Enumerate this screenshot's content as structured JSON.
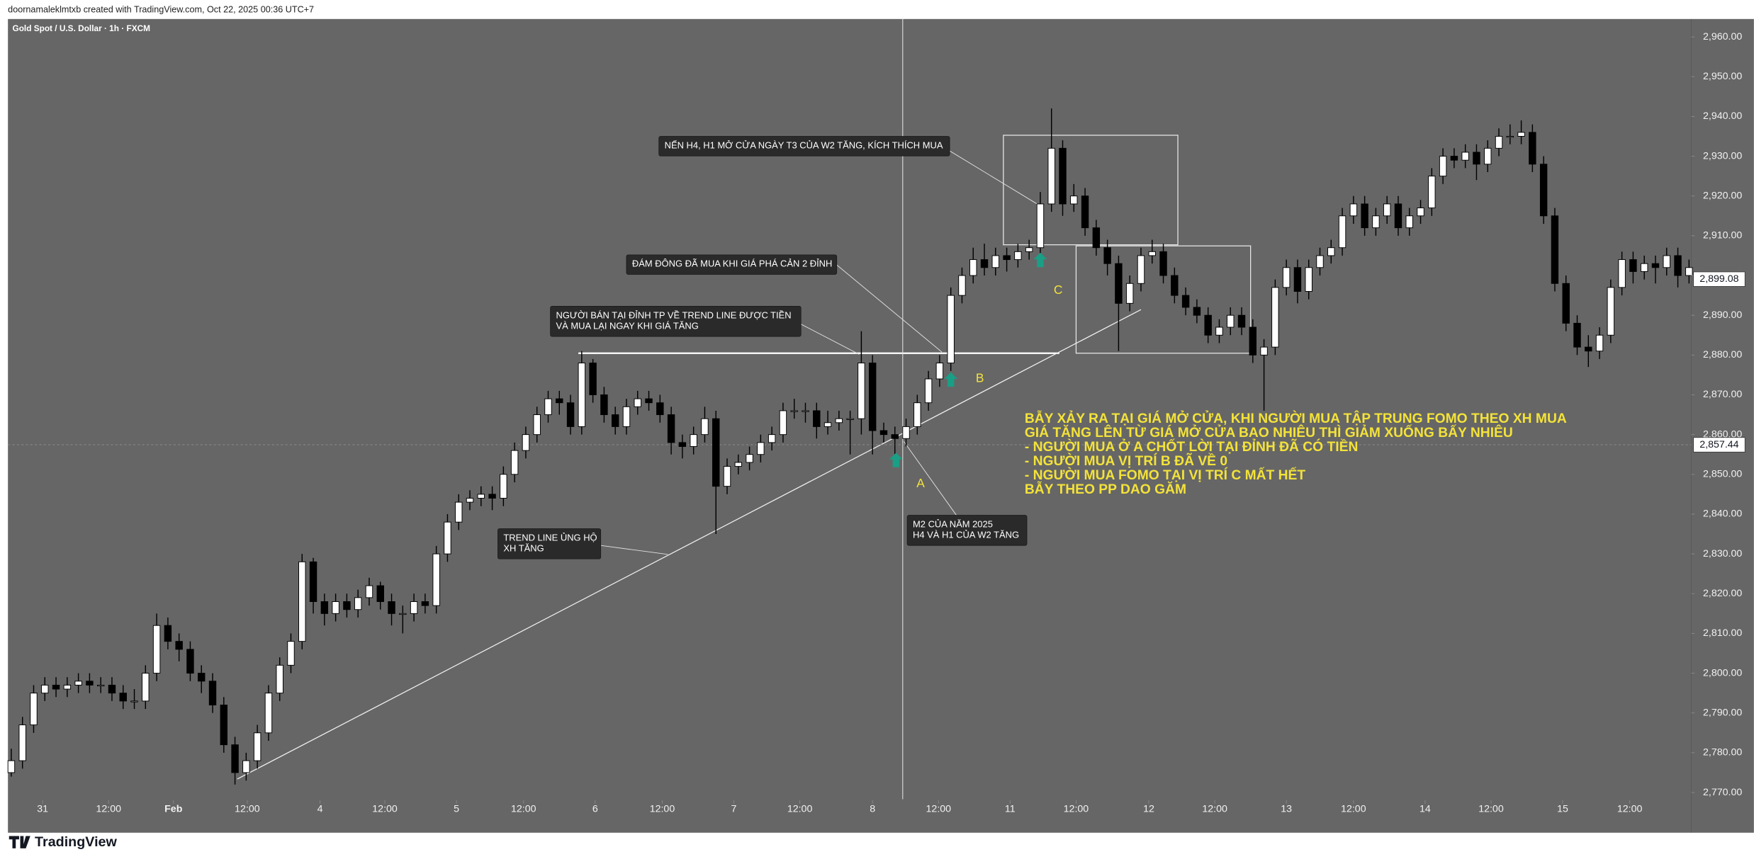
{
  "header": {
    "attribution": "doornamaleklmtxb created with TradingView.com, Oct 22, 2025 00:36 UTC+7"
  },
  "footer": {
    "brand": "TradingView"
  },
  "chart_data": {
    "type": "candlestick",
    "title": "Gold Spot / U.S. Dollar · 1h · FXCM",
    "colors": {
      "up": "#ffffff",
      "down": "#000000",
      "wick": "#000000"
    },
    "ylim": [
      2762.7,
      2964.5
    ],
    "yticks": [
      {
        "value": 2960,
        "label": "2,960.00"
      },
      {
        "value": 2950,
        "label": "2,950.00"
      },
      {
        "value": 2940,
        "label": "2,940.00"
      },
      {
        "value": 2930,
        "label": "2,930.00"
      },
      {
        "value": 2920,
        "label": "2,920.00"
      },
      {
        "value": 2910,
        "label": "2,910.00"
      },
      {
        "value": 2900,
        "label": "2,900.00"
      },
      {
        "value": 2890,
        "label": "2,890.00"
      },
      {
        "value": 2880,
        "label": "2,880.00"
      },
      {
        "value": 2870,
        "label": "2,870.00"
      },
      {
        "value": 2860,
        "label": "2,860.00"
      },
      {
        "value": 2850,
        "label": "2,850.00"
      },
      {
        "value": 2840,
        "label": "2,840.00"
      },
      {
        "value": 2830,
        "label": "2,830.00"
      },
      {
        "value": 2820,
        "label": "2,820.00"
      },
      {
        "value": 2810,
        "label": "2,810.00"
      },
      {
        "value": 2800,
        "label": "2,800.00"
      },
      {
        "value": 2790,
        "label": "2,790.00"
      },
      {
        "value": 2780,
        "label": "2,780.00"
      },
      {
        "value": 2770,
        "label": "2,770.00"
      }
    ],
    "xlim": [
      -0.3,
      150.2
    ],
    "xticks": [
      {
        "value": 2.8,
        "label": "31"
      },
      {
        "value": 8.7,
        "label": "12:00"
      },
      {
        "value": 14.5,
        "label": "Feb"
      },
      {
        "value": 21.1,
        "label": "12:00"
      },
      {
        "value": 27.6,
        "label": "4"
      },
      {
        "value": 33.4,
        "label": "12:00"
      },
      {
        "value": 39.8,
        "label": "5"
      },
      {
        "value": 45.8,
        "label": "12:00"
      },
      {
        "value": 52.2,
        "label": "6"
      },
      {
        "value": 58.2,
        "label": "12:00"
      },
      {
        "value": 64.6,
        "label": "7"
      },
      {
        "value": 70.5,
        "label": "12:00"
      },
      {
        "value": 77,
        "label": "8"
      },
      {
        "value": 82.9,
        "label": "12:00"
      },
      {
        "value": 89.3,
        "label": "11"
      },
      {
        "value": 95.2,
        "label": "12:00"
      },
      {
        "value": 101.7,
        "label": "12"
      },
      {
        "value": 107.6,
        "label": "12:00"
      },
      {
        "value": 114,
        "label": "13"
      },
      {
        "value": 120,
        "label": "12:00"
      },
      {
        "value": 126.4,
        "label": "14"
      },
      {
        "value": 132.3,
        "label": "12:00"
      },
      {
        "value": 138.7,
        "label": "15"
      },
      {
        "value": 144.7,
        "label": "12:00"
      }
    ],
    "last_price": {
      "value": 2899.08,
      "label": "2,899.08"
    },
    "crosshair_price": {
      "value": 2857.44,
      "label": "2,857.44"
    },
    "candles": [
      [
        2775,
        2781,
        2774,
        2778
      ],
      [
        2778,
        2789,
        2776,
        2787
      ],
      [
        2787,
        2797,
        2785,
        2795
      ],
      [
        2795,
        2799,
        2793,
        2797
      ],
      [
        2797,
        2799,
        2794,
        2796
      ],
      [
        2796,
        2799,
        2794,
        2797
      ],
      [
        2797,
        2800,
        2795,
        2798
      ],
      [
        2798,
        2800,
        2795,
        2797
      ],
      [
        2797,
        2799,
        2795,
        2797
      ],
      [
        2797,
        2799,
        2793,
        2795
      ],
      [
        2795,
        2797,
        2791,
        2793
      ],
      [
        2793,
        2796,
        2791,
        2793
      ],
      [
        2793,
        2802,
        2791,
        2800
      ],
      [
        2800,
        2815,
        2798,
        2812
      ],
      [
        2812,
        2814,
        2806,
        2808
      ],
      [
        2808,
        2810,
        2803,
        2806
      ],
      [
        2806,
        2808,
        2798,
        2800
      ],
      [
        2800,
        2802,
        2795,
        2798
      ],
      [
        2798,
        2800,
        2790,
        2792
      ],
      [
        2792,
        2794,
        2780,
        2782
      ],
      [
        2782,
        2784,
        2772,
        2775
      ],
      [
        2775,
        2780,
        2773,
        2778
      ],
      [
        2778,
        2787,
        2776,
        2785
      ],
      [
        2785,
        2797,
        2783,
        2795
      ],
      [
        2795,
        2804,
        2793,
        2802
      ],
      [
        2802,
        2810,
        2800,
        2808
      ],
      [
        2808,
        2830,
        2806,
        2828
      ],
      [
        2828,
        2829,
        2815,
        2818
      ],
      [
        2818,
        2820,
        2812,
        2815
      ],
      [
        2815,
        2820,
        2813,
        2818
      ],
      [
        2818,
        2820,
        2814,
        2816
      ],
      [
        2816,
        2821,
        2814,
        2819
      ],
      [
        2819,
        2824,
        2817,
        2822
      ],
      [
        2822,
        2823,
        2816,
        2818
      ],
      [
        2818,
        2820,
        2812,
        2815
      ],
      [
        2815,
        2817,
        2810,
        2815
      ],
      [
        2815,
        2820,
        2813,
        2818
      ],
      [
        2818,
        2820,
        2815,
        2817
      ],
      [
        2817,
        2832,
        2815,
        2830
      ],
      [
        2830,
        2840,
        2828,
        2838
      ],
      [
        2838,
        2845,
        2836,
        2843
      ],
      [
        2843,
        2846,
        2841,
        2844
      ],
      [
        2844,
        2847,
        2842,
        2845
      ],
      [
        2845,
        2847,
        2841,
        2844
      ],
      [
        2844,
        2852,
        2842,
        2850
      ],
      [
        2850,
        2858,
        2848,
        2856
      ],
      [
        2856,
        2862,
        2854,
        2860
      ],
      [
        2860,
        2867,
        2858,
        2865
      ],
      [
        2865,
        2871,
        2863,
        2869
      ],
      [
        2869,
        2871,
        2865,
        2868
      ],
      [
        2868,
        2870,
        2860,
        2862
      ],
      [
        2862,
        2881,
        2860,
        2878
      ],
      [
        2878,
        2879,
        2868,
        2870
      ],
      [
        2870,
        2872,
        2863,
        2865
      ],
      [
        2865,
        2867,
        2860,
        2862
      ],
      [
        2862,
        2869,
        2860,
        2867
      ],
      [
        2867,
        2871,
        2865,
        2869
      ],
      [
        2869,
        2871,
        2866,
        2868
      ],
      [
        2868,
        2870,
        2863,
        2865
      ],
      [
        2865,
        2867,
        2855,
        2858
      ],
      [
        2858,
        2860,
        2854,
        2857
      ],
      [
        2857,
        2862,
        2855,
        2860
      ],
      [
        2860,
        2867,
        2858,
        2864
      ],
      [
        2864,
        2866,
        2835,
        2847
      ],
      [
        2847,
        2854,
        2845,
        2852
      ],
      [
        2852,
        2855,
        2850,
        2853
      ],
      [
        2853,
        2857,
        2851,
        2855
      ],
      [
        2855,
        2860,
        2853,
        2858
      ],
      [
        2858,
        2862,
        2856,
        2860
      ],
      [
        2860,
        2868,
        2858,
        2866
      ],
      [
        2866,
        2869,
        2864,
        2866
      ],
      [
        2866,
        2868,
        2863,
        2866
      ],
      [
        2866,
        2868,
        2859,
        2862
      ],
      [
        2862,
        2866,
        2860,
        2863
      ],
      [
        2863,
        2866,
        2861,
        2864
      ],
      [
        2864,
        2866,
        2855,
        2864
      ],
      [
        2864,
        2886,
        2860,
        2878
      ],
      [
        2878,
        2880,
        2855,
        2861
      ],
      [
        2861,
        2863,
        2858,
        2860
      ],
      [
        2860,
        2862,
        2853,
        2859
      ],
      [
        2859,
        2864,
        2857,
        2862
      ],
      [
        2862,
        2870,
        2860,
        2868
      ],
      [
        2868,
        2876,
        2866,
        2874
      ],
      [
        2874,
        2880,
        2872,
        2878
      ],
      [
        2878,
        2897,
        2876,
        2895
      ],
      [
        2895,
        2902,
        2893,
        2900
      ],
      [
        2900,
        2907,
        2898,
        2904
      ],
      [
        2904,
        2908,
        2900,
        2902
      ],
      [
        2902,
        2907,
        2900,
        2905
      ],
      [
        2905,
        2907,
        2901,
        2904
      ],
      [
        2904,
        2908,
        2902,
        2906
      ],
      [
        2906,
        2909,
        2904,
        2907
      ],
      [
        2907,
        2921,
        2905,
        2918
      ],
      [
        2918,
        2942,
        2916,
        2932
      ],
      [
        2932,
        2934,
        2915,
        2918
      ],
      [
        2918,
        2923,
        2916,
        2920
      ],
      [
        2920,
        2922,
        2910,
        2912
      ],
      [
        2912,
        2914,
        2905,
        2907
      ],
      [
        2907,
        2909,
        2900,
        2903
      ],
      [
        2903,
        2905,
        2881,
        2893
      ],
      [
        2893,
        2900,
        2891,
        2898
      ],
      [
        2898,
        2907,
        2896,
        2905
      ],
      [
        2905,
        2909,
        2903,
        2906
      ],
      [
        2906,
        2908,
        2898,
        2900
      ],
      [
        2900,
        2902,
        2893,
        2895
      ],
      [
        2895,
        2897,
        2890,
        2892
      ],
      [
        2892,
        2894,
        2888,
        2890
      ],
      [
        2890,
        2892,
        2883,
        2885
      ],
      [
        2885,
        2889,
        2883,
        2887
      ],
      [
        2887,
        2892,
        2885,
        2890
      ],
      [
        2890,
        2892,
        2885,
        2887
      ],
      [
        2887,
        2889,
        2878,
        2880
      ],
      [
        2880,
        2884,
        2866,
        2882
      ],
      [
        2882,
        2899,
        2880,
        2897
      ],
      [
        2897,
        2904,
        2895,
        2902
      ],
      [
        2902,
        2904,
        2893,
        2896
      ],
      [
        2896,
        2904,
        2894,
        2902
      ],
      [
        2902,
        2907,
        2900,
        2905
      ],
      [
        2905,
        2909,
        2903,
        2907
      ],
      [
        2907,
        2917,
        2905,
        2915
      ],
      [
        2915,
        2920,
        2913,
        2918
      ],
      [
        2918,
        2920,
        2910,
        2912
      ],
      [
        2912,
        2917,
        2910,
        2915
      ],
      [
        2915,
        2920,
        2913,
        2918
      ],
      [
        2918,
        2920,
        2910,
        2912
      ],
      [
        2912,
        2917,
        2910,
        2915
      ],
      [
        2915,
        2919,
        2913,
        2917
      ],
      [
        2917,
        2927,
        2915,
        2925
      ],
      [
        2925,
        2932,
        2923,
        2930
      ],
      [
        2930,
        2932,
        2927,
        2929
      ],
      [
        2929,
        2933,
        2927,
        2931
      ],
      [
        2931,
        2933,
        2924,
        2928
      ],
      [
        2928,
        2934,
        2926,
        2932
      ],
      [
        2932,
        2937,
        2930,
        2935
      ],
      [
        2935,
        2938,
        2933,
        2935
      ],
      [
        2935,
        2939,
        2933,
        2936
      ],
      [
        2936,
        2938,
        2926,
        2928
      ],
      [
        2928,
        2930,
        2913,
        2915
      ],
      [
        2915,
        2917,
        2896,
        2898
      ],
      [
        2898,
        2900,
        2886,
        2888
      ],
      [
        2888,
        2890,
        2880,
        2882
      ],
      [
        2882,
        2885,
        2877,
        2881
      ],
      [
        2881,
        2887,
        2879,
        2885
      ],
      [
        2885,
        2899,
        2883,
        2897
      ],
      [
        2897,
        2906,
        2895,
        2904
      ],
      [
        2904,
        2906,
        2898,
        2901
      ],
      [
        2901,
        2905,
        2899,
        2903
      ],
      [
        2903,
        2905,
        2898,
        2902
      ],
      [
        2902,
        2907,
        2900,
        2905
      ],
      [
        2905,
        2907,
        2897,
        2900
      ],
      [
        2900,
        2904,
        2898,
        2902
      ]
    ],
    "callouts": [
      {
        "lines": [
          "NẾN H4, H1 MỞ CỬA NGÀY T3 CỦA W2 TĂNG, KÍCH THÍCH MUA"
        ]
      },
      {
        "lines": [
          "ĐÁM ĐÔNG ĐÃ MUA KHI GIÁ PHÁ CẢN 2 ĐỈNH"
        ]
      },
      {
        "lines": [
          "NGƯỜI BÁN TẠI ĐỈNH TP VỀ TREND LINE ĐƯỢC TIỀN",
          "VÀ MUA LẠI NGAY KHI GIÁ TĂNG"
        ]
      },
      {
        "lines": [
          "TREND LINE ỦNG HỘ",
          "XH TĂNG"
        ]
      },
      {
        "lines": [
          "M2 CỦA NĂM 2025",
          "H4 VÀ H1 CỦA W2 TĂNG"
        ]
      }
    ],
    "note": [
      "BẪY XẢY RA TẠI GIÁ MỞ CỬA, KHI NGƯỜI MUA TẬP TRUNG FOMO THEO XH MUA",
      "GIÁ TĂNG LÊN TỪ GIÁ MỞ CỬA BAO NHIÊU THÌ GIẢM XUỐNG BẤY NHIÊU",
      "- NGƯỜI MUA Ở A CHỐT LỜI TẠI ĐỈNH ĐÃ CÓ TIỀN",
      "- NGƯỜI MUA VỊ TRÍ B ĐÃ VỀ 0",
      "- NGƯỜI MUA FOMO TẠI VỊ TRÍ C MẤT HẾT",
      "BẪY THEO PP DAO GĂM"
    ],
    "point_labels": [
      "A",
      "B",
      "C"
    ]
  }
}
